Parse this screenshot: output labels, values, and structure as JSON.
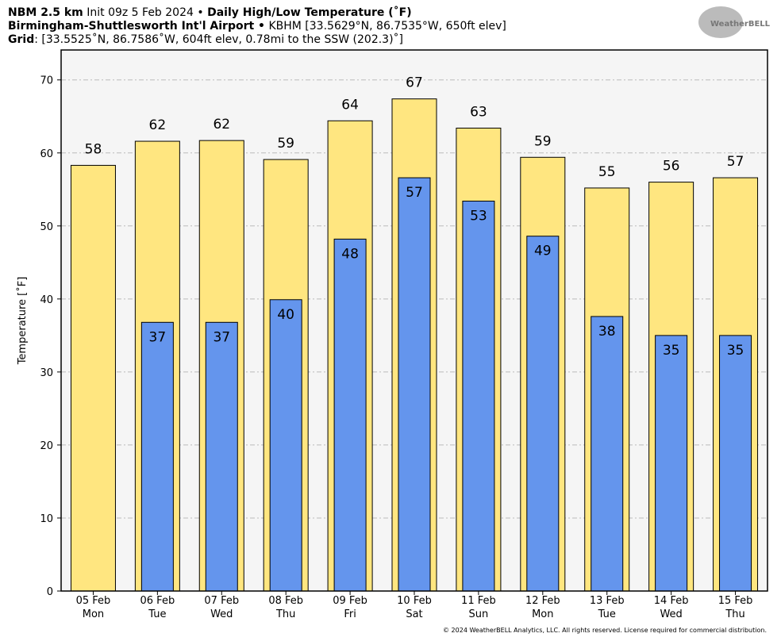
{
  "chart_data": {
    "type": "bar",
    "title": "NBM 2.5 km",
    "init": "Init 09z 5 Feb 2024 •",
    "product": "Daily High/Low Temperature (˚F)",
    "location": "Birmingham-Shuttlesworth Int'l Airport •",
    "station": "KBHM [33.5629°N, 86.7535°W, 650ft elev]",
    "grid_label": "Grid",
    "grid_info": ": [33.5525˚N, 86.7586˚W, 604ft elev, 0.78mi to the SSW (202.3)˚]",
    "logo_text": "WeatherBELL",
    "footer": "© 2024 WeatherBELL Analytics, LLC. All rights reserved. License required for commercial distribution.",
    "y_label": "Temperature [˚F]",
    "categories": [
      [
        "05 Feb",
        "Mon"
      ],
      [
        "06 Feb",
        "Tue"
      ],
      [
        "07 Feb",
        "Wed"
      ],
      [
        "08 Feb",
        "Thu"
      ],
      [
        "09 Feb",
        "Fri"
      ],
      [
        "10 Feb",
        "Sat"
      ],
      [
        "11 Feb",
        "Sun"
      ],
      [
        "12 Feb",
        "Mon"
      ],
      [
        "13 Feb",
        "Tue"
      ],
      [
        "14 Feb",
        "Wed"
      ],
      [
        "15 Feb",
        "Thu"
      ]
    ],
    "series": [
      {
        "name": "High",
        "color": "#ffe680",
        "values": [
          58.3,
          61.6,
          61.7,
          59.1,
          64.4,
          67.4,
          63.4,
          59.4,
          55.2,
          56.0,
          56.6
        ],
        "value_labels": [
          "58",
          "62",
          "62",
          "59",
          "64",
          "67",
          "63",
          "59",
          "55",
          "56",
          "57"
        ]
      },
      {
        "name": "Low",
        "color": "#6495ed",
        "values": [
          null,
          36.8,
          36.8,
          39.9,
          48.2,
          56.6,
          53.4,
          48.6,
          37.6,
          35.0,
          35.0
        ],
        "value_labels": [
          null,
          "37",
          "37",
          "40",
          "48",
          "57",
          "53",
          "49",
          "38",
          "35",
          "35"
        ]
      }
    ],
    "ylim": [
      0,
      74.1
    ],
    "yticks": [
      0,
      10,
      20,
      30,
      40,
      50,
      60,
      70
    ],
    "grid": true
  }
}
